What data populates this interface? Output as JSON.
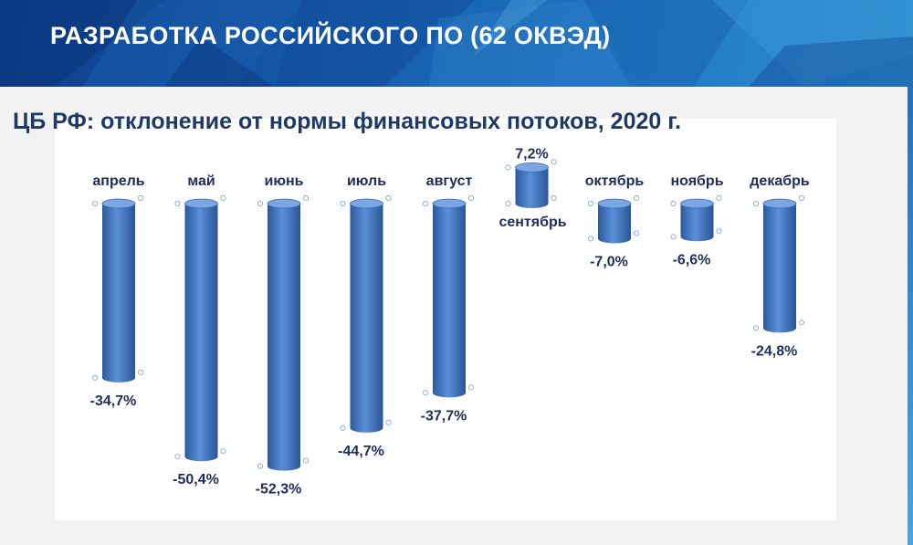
{
  "header": {
    "title": "РАЗРАБОТКА РОССИЙСКОГО ПО (62 ОКВЭД)"
  },
  "colors": {
    "banner_dark": "#0d3d8a",
    "banner_light": "#2c8fd0",
    "bar": "#3d73be",
    "text": "#1f2d5a"
  },
  "chart_data": {
    "type": "bar",
    "title": "ЦБ РФ: отклонение от нормы финансовых потоков, 2020 г.",
    "categories": [
      "апрель",
      "май",
      "июнь",
      "июль",
      "август",
      "сентябрь",
      "октябрь",
      "ноябрь",
      "декабрь"
    ],
    "values": [
      -34.7,
      -50.4,
      -52.3,
      -44.7,
      -37.7,
      7.2,
      -7.0,
      -6.6,
      -24.8
    ],
    "value_labels": [
      "-34,7%",
      "-50,4%",
      "-52,3%",
      "-44,7%",
      "-37,7%",
      "7,2%",
      "-7,0%",
      "-6,6%",
      "-24,8%"
    ],
    "bar_style": "cylinder",
    "grid": false,
    "legend": "none"
  }
}
